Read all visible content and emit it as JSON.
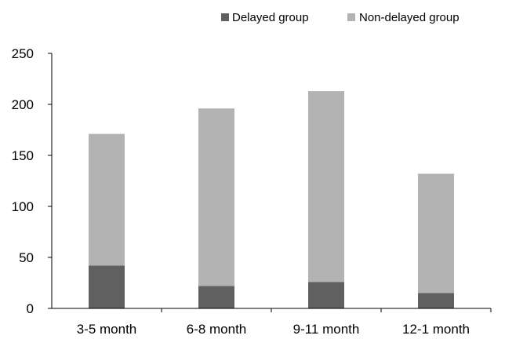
{
  "chart_data": {
    "type": "bar",
    "stacked": true,
    "categories": [
      "3-5 month",
      "6-8 month",
      "9-11 month",
      "12-1 month"
    ],
    "series": [
      {
        "name": "Delayed group",
        "values": [
          42,
          22,
          26,
          15
        ],
        "color": "#606060"
      },
      {
        "name": "Non-delayed group",
        "values": [
          129,
          174,
          187,
          117
        ],
        "color": "#b3b3b3"
      }
    ],
    "y_ticks": [
      "0",
      "50",
      "100",
      "150",
      "200",
      "250"
    ],
    "ylim": [
      0,
      250
    ],
    "grid": false,
    "legend_position": "top-right",
    "title": "",
    "xlabel": "",
    "ylabel": ""
  }
}
